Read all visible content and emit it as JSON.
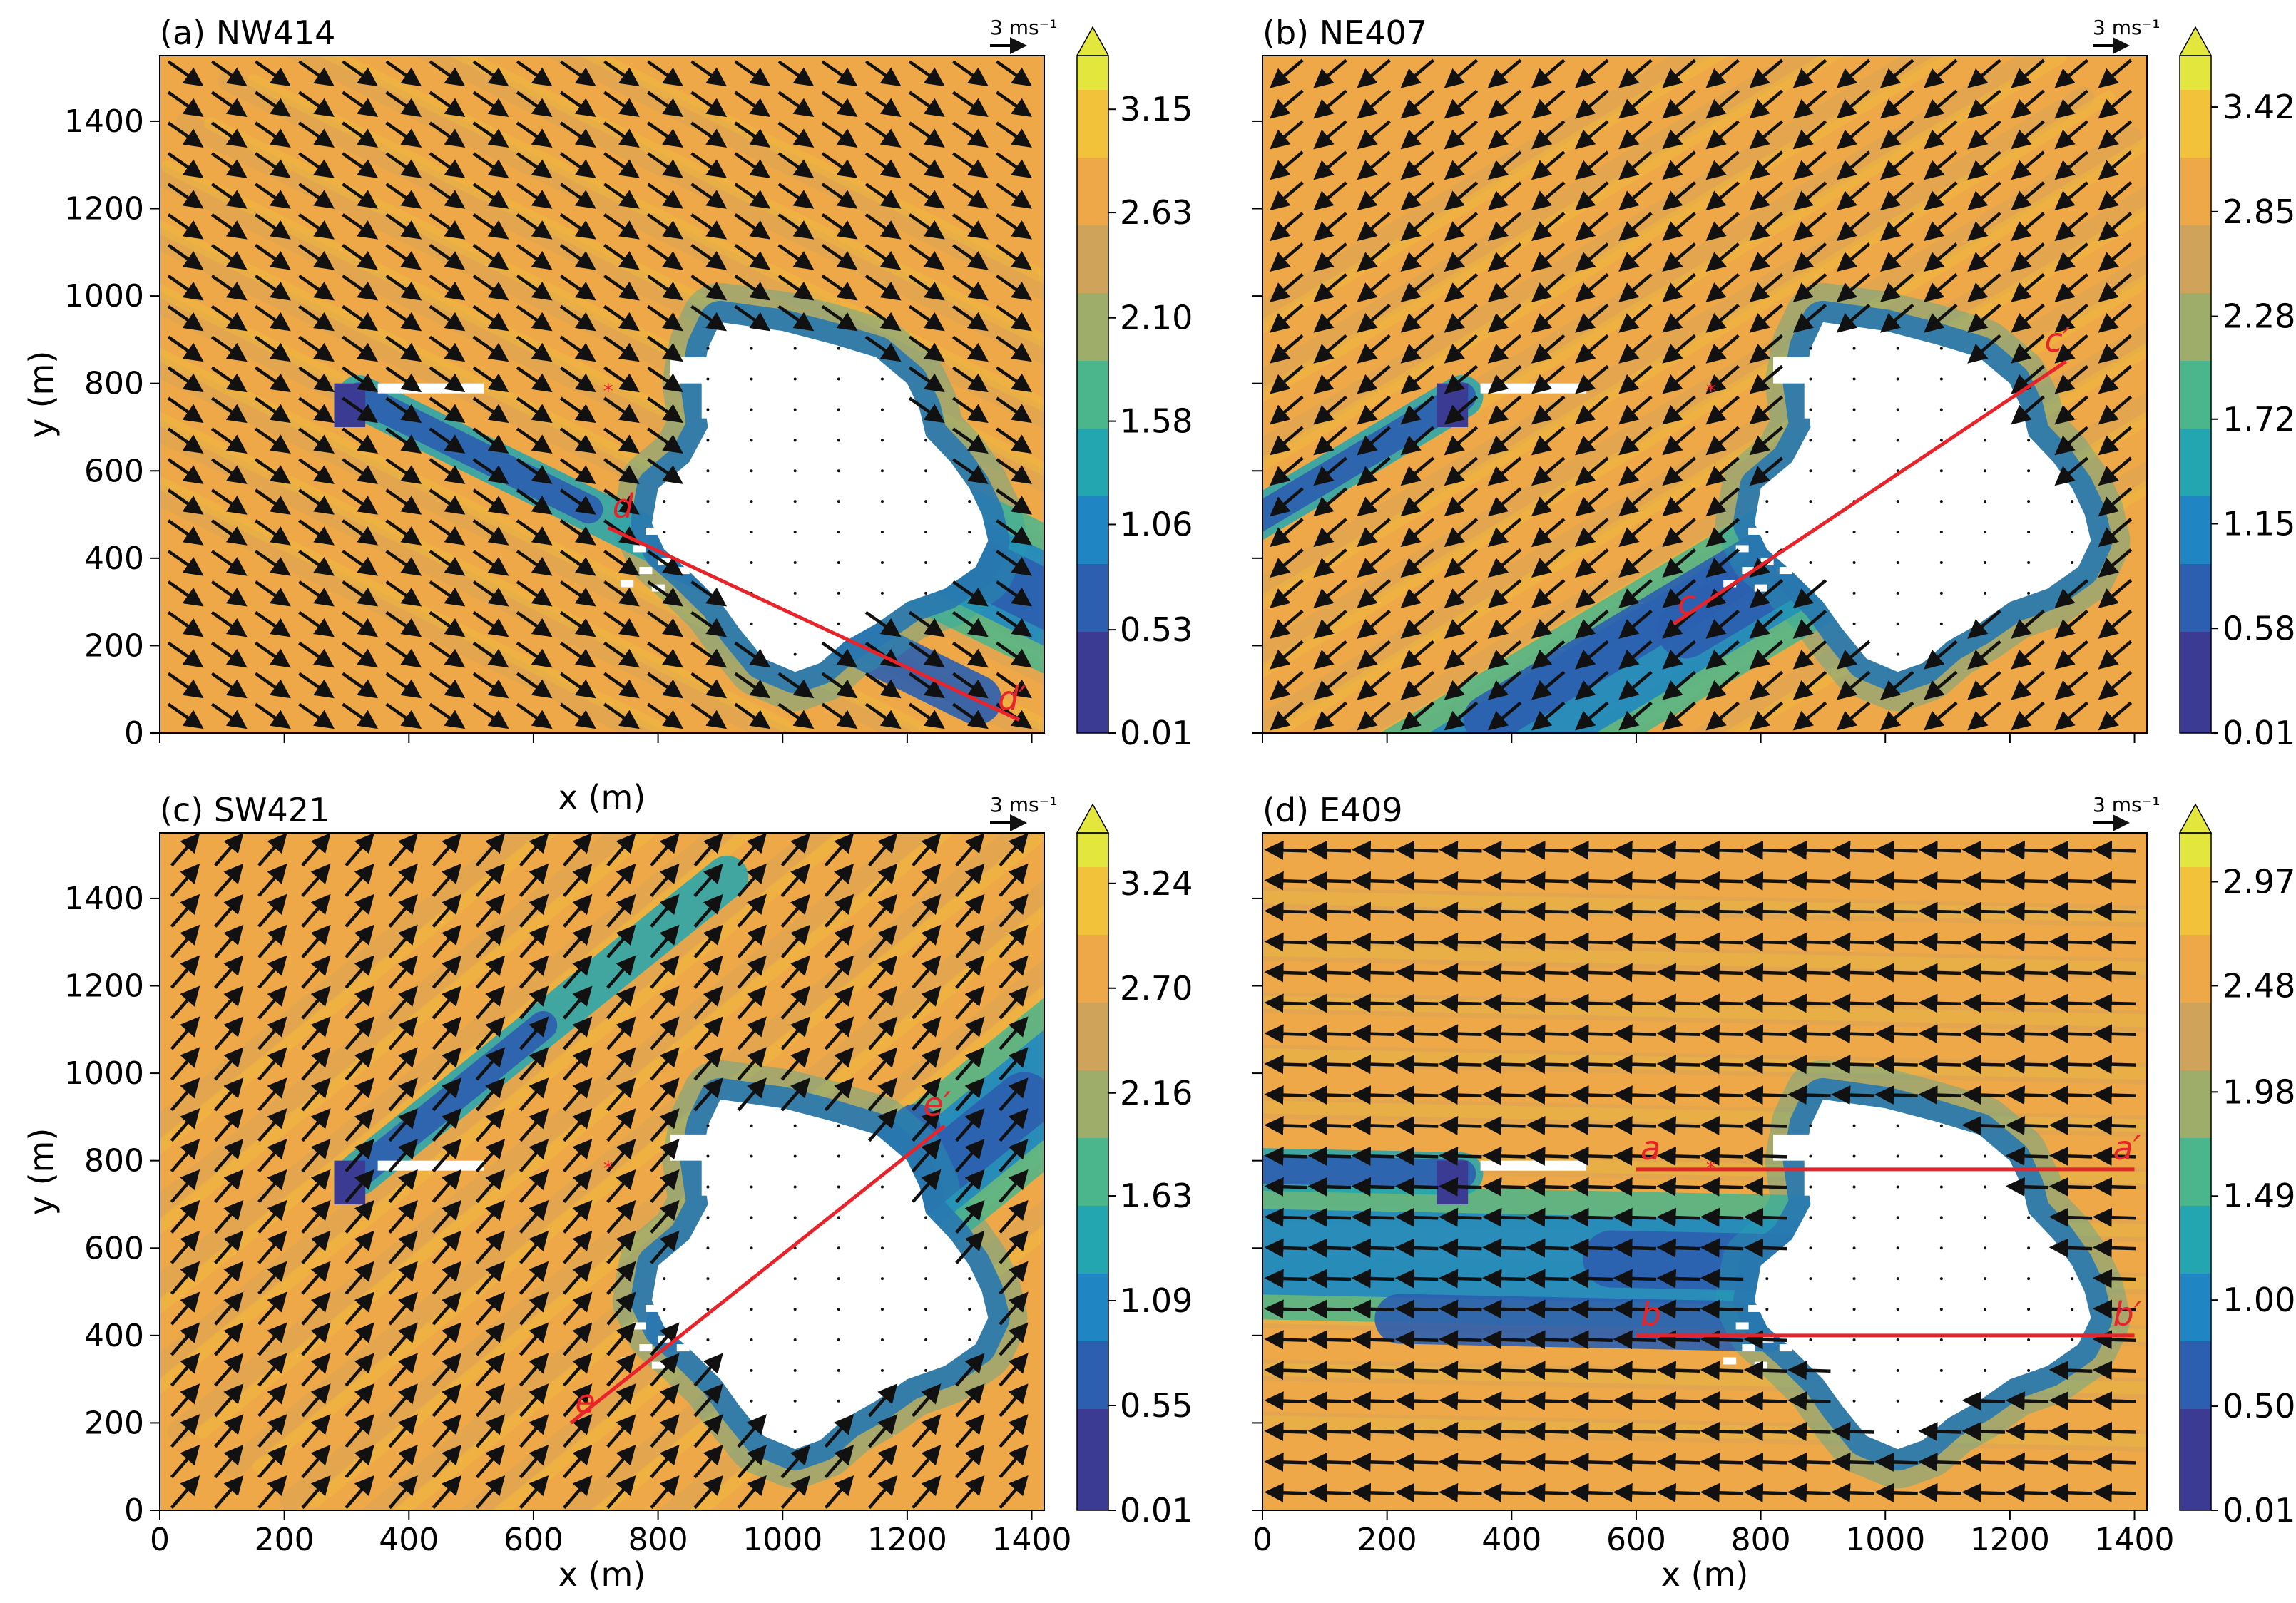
{
  "chart_data": [
    {
      "panel": "a",
      "type": "heatmap",
      "title": "(a) NW414",
      "xlabel": "x (m)",
      "ylabel": "y (m)",
      "xlim": [
        0,
        1420
      ],
      "ylim": [
        0,
        1550
      ],
      "xticks": [
        0,
        200,
        400,
        600,
        800,
        1000,
        1200,
        1400
      ],
      "yticks": [
        0,
        200,
        400,
        600,
        800,
        1000,
        1200,
        1400
      ],
      "colorbar": {
        "ticks": [
          "0.01",
          "0.53",
          "1.06",
          "1.58",
          "2.10",
          "2.63",
          "3.15"
        ],
        "vmin": 0.01,
        "vmax": 3.42
      },
      "wind": {
        "dx": 1,
        "dy": -0.7,
        "speed": 3.0
      },
      "vector_key": {
        "label": "3 ms⁻¹"
      },
      "section": {
        "start": [
          720,
          470
        ],
        "end": [
          1380,
          30
        ],
        "start_label": "d",
        "end_label": "d′"
      },
      "marker": {
        "x": 720,
        "y": 780
      }
    },
    {
      "panel": "b",
      "type": "heatmap",
      "title": "(b) NE407",
      "xlabel": "",
      "ylabel": "",
      "xlim": [
        0,
        1420
      ],
      "ylim": [
        0,
        1550
      ],
      "xticks": [
        0,
        200,
        400,
        600,
        800,
        1000,
        1200,
        1400
      ],
      "yticks": [
        0,
        200,
        400,
        600,
        800,
        1000,
        1200,
        1400
      ],
      "colorbar": {
        "ticks": [
          "0.01",
          "0.58",
          "1.15",
          "1.72",
          "2.28",
          "2.85",
          "3.42"
        ],
        "vmin": 0.01,
        "vmax": 3.7
      },
      "wind": {
        "dx": -1,
        "dy": -0.85,
        "speed": 3.2
      },
      "vector_key": {
        "label": "3 ms⁻¹"
      },
      "section": {
        "start": [
          660,
          250
        ],
        "end": [
          1290,
          850
        ],
        "start_label": "c",
        "end_label": "c′"
      },
      "marker": {
        "x": 720,
        "y": 780
      }
    },
    {
      "panel": "c",
      "type": "heatmap",
      "title": "(c) SW421",
      "xlabel": "x (m)",
      "ylabel": "y (m)",
      "xlim": [
        0,
        1420
      ],
      "ylim": [
        0,
        1550
      ],
      "xticks": [
        0,
        200,
        400,
        600,
        800,
        1000,
        1200,
        1400
      ],
      "yticks": [
        0,
        200,
        400,
        600,
        800,
        1000,
        1200,
        1400
      ],
      "colorbar": {
        "ticks": [
          "0.01",
          "0.55",
          "1.09",
          "1.63",
          "2.16",
          "2.70",
          "3.24"
        ],
        "vmin": 0.01,
        "vmax": 3.5
      },
      "wind": {
        "dx": 1,
        "dy": 1.15,
        "speed": 3.1
      },
      "vector_key": {
        "label": "3 ms⁻¹"
      },
      "section": {
        "start": [
          660,
          200
        ],
        "end": [
          1260,
          880
        ],
        "start_label": "e",
        "end_label": "e′"
      },
      "marker": {
        "x": 720,
        "y": 780
      }
    },
    {
      "panel": "d",
      "type": "heatmap",
      "title": "(d) E409",
      "xlabel": "x (m)",
      "ylabel": "",
      "xlim": [
        0,
        1420
      ],
      "ylim": [
        0,
        1550
      ],
      "xticks": [
        0,
        200,
        400,
        600,
        800,
        1000,
        1200,
        1400
      ],
      "yticks": [
        0,
        200,
        400,
        600,
        800,
        1000,
        1200,
        1400
      ],
      "colorbar": {
        "ticks": [
          "0.01",
          "0.50",
          "1.00",
          "1.49",
          "1.98",
          "2.48",
          "2.97"
        ],
        "vmin": 0.01,
        "vmax": 3.2
      },
      "wind": {
        "dx": -1,
        "dy": 0.03,
        "speed": 2.9
      },
      "vector_key": {
        "label": "3 ms⁻¹"
      },
      "sections": [
        {
          "start": [
            600,
            780
          ],
          "end": [
            1400,
            780
          ],
          "start_label": "a",
          "end_label": "a′"
        },
        {
          "start": [
            600,
            400
          ],
          "end": [
            1400,
            400
          ],
          "start_label": "b",
          "end_label": "b′"
        }
      ],
      "marker": {
        "x": 720,
        "y": 780
      }
    }
  ],
  "colors": {
    "colormap": [
      "#3b3b93",
      "#2c5fb0",
      "#1f86c3",
      "#23a6b0",
      "#4bb68c",
      "#9eae6a",
      "#cfa35a",
      "#efa848",
      "#f2c23a",
      "#e3e63d"
    ],
    "section_line": "#e8232a",
    "island": "#ffffff",
    "arrow": "#111111"
  },
  "obstacle": {
    "island_outline": [
      [
        900,
        940
      ],
      [
        1000,
        920
      ],
      [
        1080,
        890
      ],
      [
        1150,
        860
      ],
      [
        1200,
        800
      ],
      [
        1220,
        740
      ],
      [
        1230,
        680
      ],
      [
        1270,
        620
      ],
      [
        1300,
        560
      ],
      [
        1320,
        500
      ],
      [
        1330,
        440
      ],
      [
        1310,
        380
      ],
      [
        1260,
        330
      ],
      [
        1200,
        300
      ],
      [
        1150,
        250
      ],
      [
        1100,
        210
      ],
      [
        1060,
        160
      ],
      [
        1020,
        140
      ],
      [
        970,
        170
      ],
      [
        930,
        240
      ],
      [
        900,
        300
      ],
      [
        850,
        370
      ],
      [
        810,
        420
      ],
      [
        790,
        480
      ],
      [
        800,
        560
      ],
      [
        850,
        620
      ],
      [
        880,
        700
      ],
      [
        870,
        800
      ],
      [
        880,
        880
      ]
    ]
  }
}
